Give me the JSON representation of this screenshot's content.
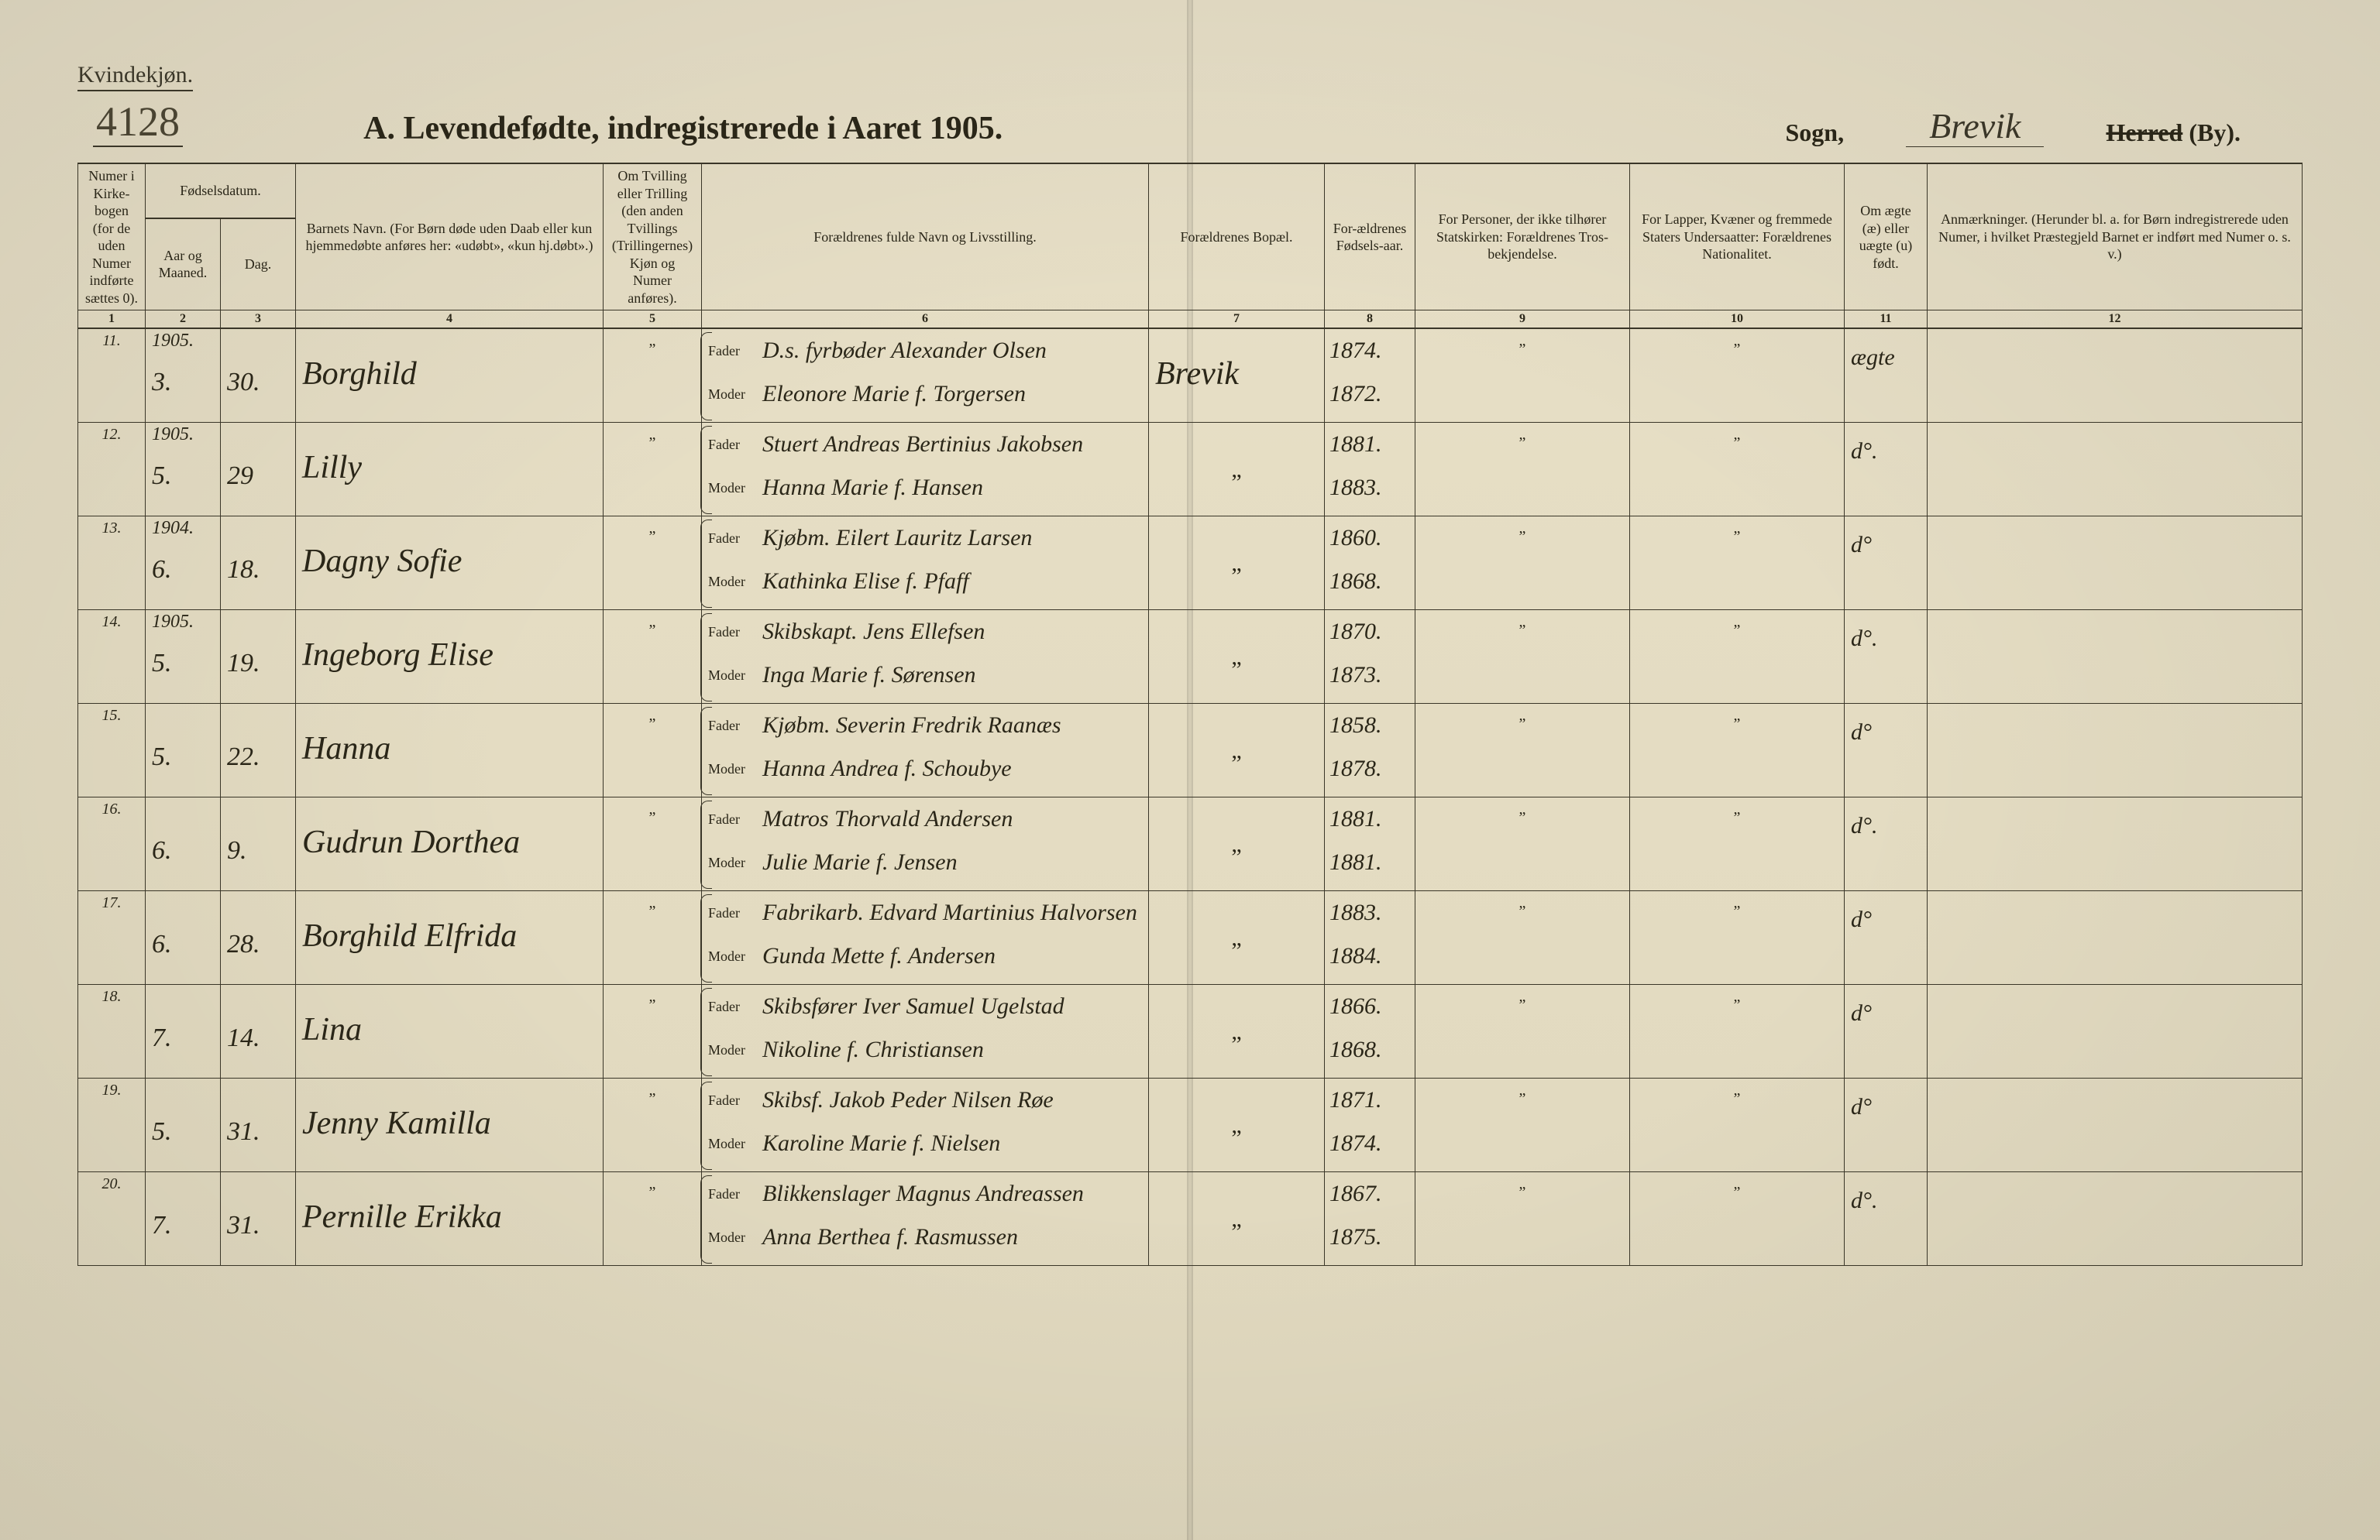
{
  "header": {
    "gender_label": "Kvindekjøn.",
    "catalog_number": "4128",
    "form_title": "A.  Levendefødte, indregistrerede i Aaret 1905.",
    "sogn_label": "Sogn,",
    "sogn_value": "Brevik",
    "herred_strike": "Herred",
    "herred_suffix": "(By)."
  },
  "columns": {
    "c1": "Numer i Kirke-bogen (for de uden Numer indførte sættes 0).",
    "c2_group": "Fødselsdatum.",
    "c2": "Aar og Maaned.",
    "c3": "Dag.",
    "c4": "Barnets Navn.\n(For Børn døde uden Daab eller kun hjemmedøbte anføres her: «udøbt», «kun hj.døbt».)",
    "c5": "Om Tvilling eller Trilling (den anden Tvillings (Trillingernes) Kjøn og Numer anføres).",
    "c6": "Forældrenes fulde Navn og Livsstilling.",
    "c7": "Forældrenes Bopæl.",
    "c8": "For-ældrenes Fødsels-aar.",
    "c9": "For Personer, der ikke tilhører Statskirken: Forældrenes Tros-bekjendelse.",
    "c10": "For Lapper, Kvæner og fremmede Staters Undersaatter: Forældrenes Nationalitet.",
    "c11": "Om ægte (æ) eller uægte (u) født.",
    "c12": "Anmærkninger.\n(Herunder bl. a. for Børn indregistrerede uden Numer, i hvilket Præstegjeld Barnet er indført med Numer o. s. v.)"
  },
  "colnums": [
    "1",
    "2",
    "3",
    "4",
    "5",
    "6",
    "7",
    "8",
    "9",
    "10",
    "11",
    "12"
  ],
  "parent_labels": {
    "father": "Fader",
    "mother": "Moder"
  },
  "rows": [
    {
      "num": "11.",
      "year_above": "1905.",
      "month": "3.",
      "day": "30.",
      "child": "Borghild",
      "twin": "„",
      "father": "D.s. fyrbøder Alexander Olsen",
      "mother": "Eleonore Marie f. Torgersen",
      "residence": "Brevik",
      "fyear": "1874.",
      "myear": "1872.",
      "col9": "„",
      "col10": "„",
      "legit": "ægte",
      "remarks": ""
    },
    {
      "num": "12.",
      "year_above": "1905.",
      "month": "5.",
      "day": "29",
      "child": "Lilly",
      "twin": "„",
      "father": "Stuert Andreas Bertinius Jakobsen",
      "mother": "Hanna Marie f. Hansen",
      "residence": "„",
      "fyear": "1881.",
      "myear": "1883.",
      "col9": "„",
      "col10": "„",
      "legit": "d°.",
      "remarks": ""
    },
    {
      "num": "13.",
      "year_above": "1904.",
      "month": "6.",
      "day": "18.",
      "child": "Dagny Sofie",
      "twin": "„",
      "father": "Kjøbm. Eilert Lauritz Larsen",
      "mother": "Kathinka Elise f. Pfaff",
      "residence": "„",
      "fyear": "1860.",
      "myear": "1868.",
      "col9": "„",
      "col10": "„",
      "legit": "d°",
      "remarks": ""
    },
    {
      "num": "14.",
      "year_above": "1905.",
      "month": "5.",
      "day": "19.",
      "child": "Ingeborg Elise",
      "twin": "„",
      "father": "Skibskapt. Jens Ellefsen",
      "mother": "Inga Marie f. Sørensen",
      "residence": "„",
      "fyear": "1870.",
      "myear": "1873.",
      "col9": "„",
      "col10": "„",
      "legit": "d°.",
      "remarks": ""
    },
    {
      "num": "15.",
      "year_above": "",
      "month": "5.",
      "day": "22.",
      "child": "Hanna",
      "twin": "„",
      "father": "Kjøbm. Severin Fredrik Raanæs",
      "mother": "Hanna Andrea f. Schoubye",
      "residence": "„",
      "fyear": "1858.",
      "myear": "1878.",
      "col9": "„",
      "col10": "„",
      "legit": "d°",
      "remarks": ""
    },
    {
      "num": "16.",
      "year_above": "",
      "month": "6.",
      "day": "9.",
      "child": "Gudrun Dorthea",
      "twin": "„",
      "father": "Matros Thorvald Andersen",
      "mother": "Julie Marie f. Jensen",
      "residence": "„",
      "fyear": "1881.",
      "myear": "1881.",
      "col9": "„",
      "col10": "„",
      "legit": "d°.",
      "remarks": ""
    },
    {
      "num": "17.",
      "year_above": "",
      "month": "6.",
      "day": "28.",
      "child": "Borghild Elfrida",
      "twin": "„",
      "father": "Fabrikarb. Edvard Martinius Halvorsen",
      "mother": "Gunda Mette f. Andersen",
      "residence": "„",
      "fyear": "1883.",
      "myear": "1884.",
      "col9": "„",
      "col10": "„",
      "legit": "d°",
      "remarks": ""
    },
    {
      "num": "18.",
      "year_above": "",
      "month": "7.",
      "day": "14.",
      "child": "Lina",
      "twin": "„",
      "father": "Skibsfører Iver Samuel Ugelstad",
      "mother": "Nikoline f. Christiansen",
      "residence": "„",
      "fyear": "1866.",
      "myear": "1868.",
      "col9": "„",
      "col10": "„",
      "legit": "d°",
      "remarks": ""
    },
    {
      "num": "19.",
      "year_above": "",
      "month": "5.",
      "day": "31.",
      "child": "Jenny Kamilla",
      "twin": "„",
      "father": "Skibsf. Jakob Peder Nilsen Røe",
      "mother": "Karoline Marie f. Nielsen",
      "residence": "„",
      "fyear": "1871.",
      "myear": "1874.",
      "col9": "„",
      "col10": "„",
      "legit": "d°",
      "remarks": ""
    },
    {
      "num": "20.",
      "year_above": "",
      "month": "7.",
      "day": "31.",
      "child": "Pernille Erikka",
      "twin": "„",
      "father": "Blikkenslager Magnus Andreassen",
      "mother": "Anna Berthea f. Rasmussen",
      "residence": "„",
      "fyear": "1867.",
      "myear": "1875.",
      "col9": "„",
      "col10": "„",
      "legit": "d°.",
      "remarks": ""
    }
  ],
  "style": {
    "page_bg": "#e4dcc2",
    "ink": "#2a2618",
    "line": "#3a3628",
    "handwriting_font": "cursive",
    "print_font": "Georgia"
  }
}
